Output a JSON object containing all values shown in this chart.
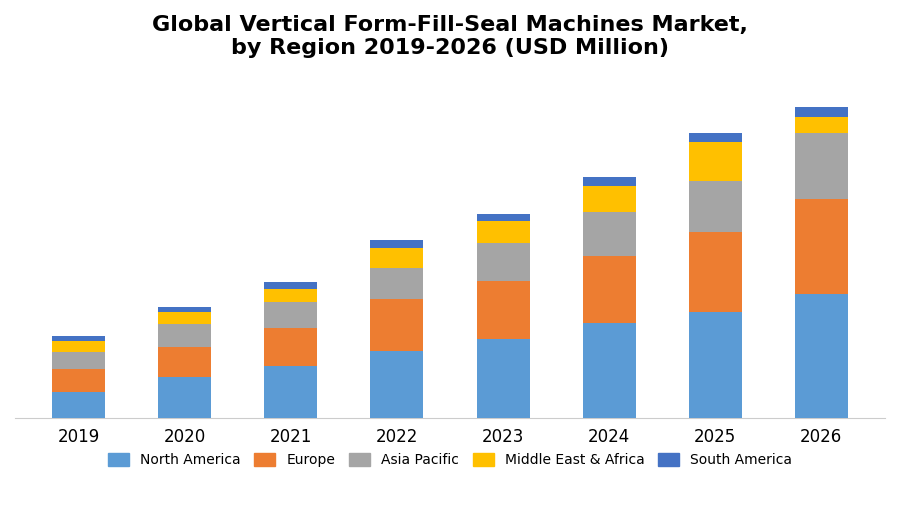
{
  "title": "Global Vertical Form-Fill-Seal Machines Market,\nby Region 2019-2026 (USD Million)",
  "years": [
    2019,
    2020,
    2021,
    2022,
    2023,
    2024,
    2025,
    2026
  ],
  "regions": [
    "North America",
    "Europe",
    "Asia Pacific",
    "Middle East & Africa",
    "South America"
  ],
  "colors": [
    "#5B9BD5",
    "#ED7D31",
    "#A5A5A5",
    "#FFC000",
    "#4472C4"
  ],
  "values": {
    "North America": [
      100,
      155,
      195,
      255,
      300,
      360,
      400,
      470
    ],
    "Europe": [
      85,
      115,
      145,
      195,
      220,
      255,
      305,
      360
    ],
    "Asia Pacific": [
      65,
      85,
      100,
      120,
      145,
      165,
      195,
      250
    ],
    "Middle East & Africa": [
      40,
      45,
      50,
      75,
      80,
      100,
      145,
      60
    ],
    "South America": [
      20,
      22,
      25,
      28,
      30,
      32,
      35,
      38
    ]
  },
  "background_color": "#ffffff",
  "title_fontsize": 16,
  "legend_fontsize": 10,
  "tick_fontsize": 12,
  "bar_width": 0.5,
  "ylim": [
    0,
    1300
  ]
}
